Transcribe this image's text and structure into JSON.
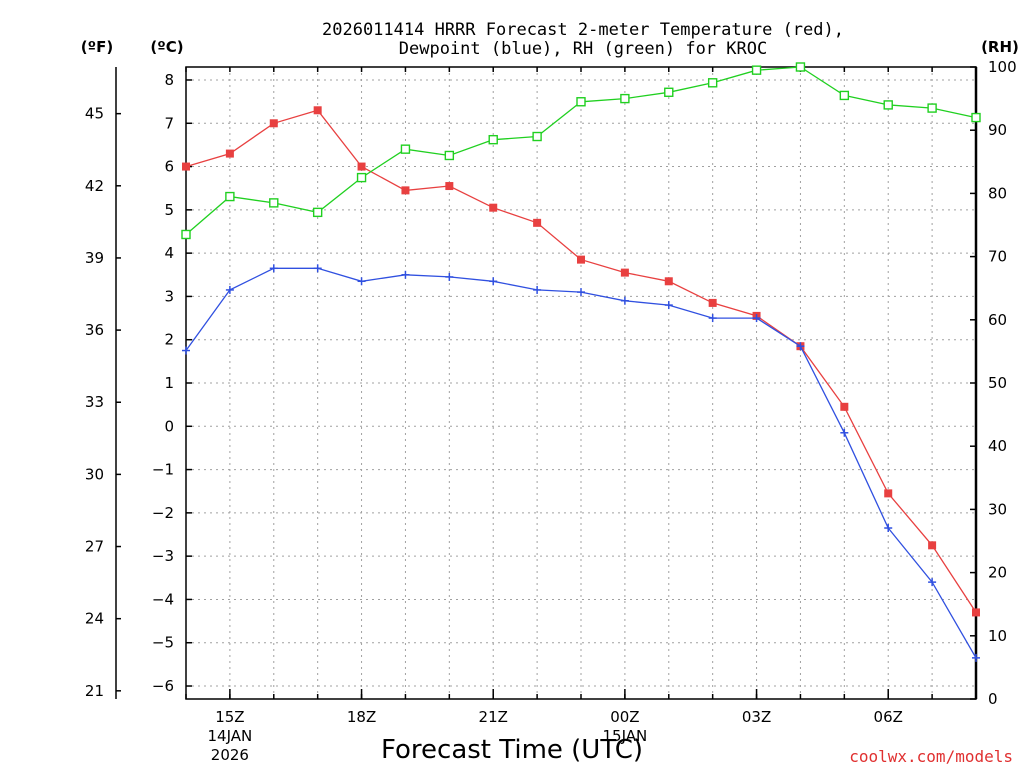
{
  "chart_data": {
    "type": "line",
    "title_line1": "2026011414 HRRR Forecast 2-meter Temperature (red),",
    "title_line2": "Dewpoint (blue), RH (green) for KROC",
    "xlabel": "Forecast Time (UTC)",
    "credit": "coolwx.com/models",
    "unit_f": "(ºF)",
    "unit_c": "(ºC)",
    "unit_rh": "(RH)",
    "x": [
      14,
      15,
      16,
      17,
      18,
      19,
      20,
      21,
      22,
      23,
      24,
      25,
      26,
      27,
      28,
      29,
      30,
      31,
      32
    ],
    "xlim": [
      14,
      32
    ],
    "x_ticks": [
      {
        "x": 15,
        "label": "15Z",
        "date": "14JAN",
        "year": "2026"
      },
      {
        "x": 18,
        "label": "18Z"
      },
      {
        "x": 21,
        "label": "21Z"
      },
      {
        "x": 24,
        "label": "00Z",
        "date": "15JAN"
      },
      {
        "x": 27,
        "label": "03Z"
      },
      {
        "x": 30,
        "label": "06Z"
      }
    ],
    "c_axis": {
      "ylim": [
        -6.3,
        8.3
      ],
      "ticks": [
        "8",
        "7",
        "6",
        "5",
        "4",
        "3",
        "2",
        "1",
        "0",
        "−1",
        "−2",
        "−3",
        "−4",
        "−5",
        "−6"
      ],
      "values": [
        8,
        7,
        6,
        5,
        4,
        3,
        2,
        1,
        0,
        -1,
        -2,
        -3,
        -4,
        -5,
        -6
      ]
    },
    "f_axis": {
      "ticks": [
        "45",
        "42",
        "39",
        "36",
        "33",
        "30",
        "27",
        "24",
        "21"
      ],
      "values": [
        45,
        42,
        39,
        36,
        33,
        30,
        27,
        24,
        21
      ]
    },
    "rh_axis": {
      "ylim": [
        0,
        100
      ],
      "ticks": [
        "100",
        "90",
        "80",
        "70",
        "60",
        "50",
        "40",
        "30",
        "20",
        "10",
        "0"
      ],
      "values": [
        100,
        90,
        80,
        70,
        60,
        50,
        40,
        30,
        20,
        10,
        0
      ]
    },
    "grid": true,
    "series": [
      {
        "name": "Temperature",
        "axis": "c",
        "color": "#e84040",
        "marker": "filled-square",
        "values": [
          6.0,
          6.3,
          7.0,
          7.3,
          6.0,
          5.45,
          5.55,
          5.05,
          4.7,
          3.85,
          3.55,
          3.35,
          2.85,
          2.55,
          1.85,
          0.45,
          -1.55,
          -2.75,
          -4.3
        ]
      },
      {
        "name": "Dewpoint",
        "axis": "c",
        "color": "#3050e0",
        "marker": "plus",
        "values": [
          1.75,
          3.15,
          3.65,
          3.65,
          3.35,
          3.5,
          3.45,
          3.35,
          3.15,
          3.1,
          2.9,
          2.8,
          2.5,
          2.5,
          1.85,
          -0.15,
          -2.35,
          -3.6,
          -5.35
        ]
      },
      {
        "name": "RH",
        "axis": "rh",
        "color": "#20d020",
        "marker": "open-square",
        "values": [
          73.5,
          79.5,
          78.5,
          77.0,
          82.5,
          87.0,
          86.0,
          88.5,
          89.0,
          94.5,
          95.0,
          96.0,
          97.5,
          99.5,
          100.0,
          95.5,
          94.0,
          93.5,
          92.0
        ]
      }
    ]
  }
}
